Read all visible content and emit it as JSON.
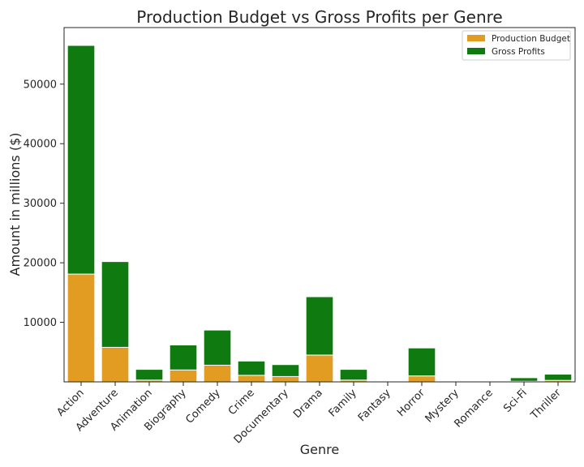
{
  "chart_data": {
    "type": "bar",
    "stacked": true,
    "title": "Production Budget vs Gross Profits per Genre",
    "xlabel": "Genre",
    "ylabel": "Amount in millions ($)",
    "categories": [
      "Action",
      "Adventure",
      "Animation",
      "Biography",
      "Comedy",
      "Crime",
      "Documentary",
      "Drama",
      "Family",
      "Fantasy",
      "Horror",
      "Mystery",
      "Romance",
      "Sci-Fi",
      "Thriller"
    ],
    "series": [
      {
        "name": "Production Budget",
        "color": "#e39c22",
        "values": [
          18100,
          5800,
          300,
          2000,
          2800,
          1100,
          900,
          4500,
          300,
          0,
          1000,
          0,
          0,
          100,
          250
        ]
      },
      {
        "name": "Gross Profits",
        "color": "#0f7a0f",
        "values": [
          38400,
          14400,
          1800,
          4200,
          5900,
          2400,
          2000,
          9800,
          1800,
          0,
          4700,
          0,
          0,
          600,
          1050
        ]
      }
    ],
    "ylim": [
      0,
      59500
    ],
    "yticks": [
      10000,
      20000,
      30000,
      40000,
      50000
    ],
    "grid": false,
    "legend_position": "top-right"
  }
}
